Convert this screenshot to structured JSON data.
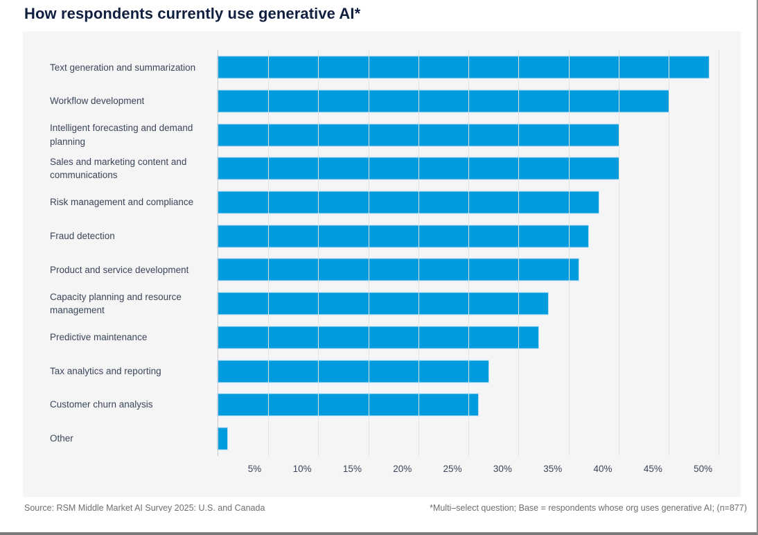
{
  "title": "How respondents currently use generative AI*",
  "footer": {
    "source": "Source: RSM Middle Market AI Survey 2025: U.S. and Canada",
    "note": "*Multi–select question; Base = respondents whose org uses generative AI; (n=877)"
  },
  "colors": {
    "bar": "#009cde",
    "bar_outline": "#b9ddf1",
    "title_text": "#101f3e",
    "label_text": "#3b4559",
    "panel_bg": "#f5f5f6",
    "gridline": "#e3e3e6",
    "axis_line": "#c9c9cd",
    "footer_text": "#6e6e6e"
  },
  "chart_data": {
    "type": "bar",
    "orientation": "horizontal",
    "title": "How respondents currently use generative AI*",
    "categories": [
      "Text generation and summarization",
      "Workflow development",
      "Intelligent forecasting and demand planning",
      "Sales and marketing content and communications",
      "Risk management and compliance",
      "Fraud detection",
      "Product and service development",
      "Capacity planning and resource management",
      "Predictive maintenance",
      "Tax analytics and reporting",
      "Customer churn analysis",
      "Other"
    ],
    "values": [
      49,
      45,
      40,
      40,
      38,
      37,
      36,
      33,
      32,
      27,
      26,
      1
    ],
    "unit": "%",
    "x_tick_values": [
      5,
      10,
      15,
      20,
      25,
      30,
      35,
      40,
      45,
      50
    ],
    "x_tick_labels": [
      "5%",
      "10%",
      "15%",
      "20%",
      "25%",
      "30%",
      "35%",
      "40%",
      "45%",
      "50%"
    ],
    "xlim": [
      0,
      52.2
    ],
    "grid": "vertical-only",
    "legend": "none"
  }
}
